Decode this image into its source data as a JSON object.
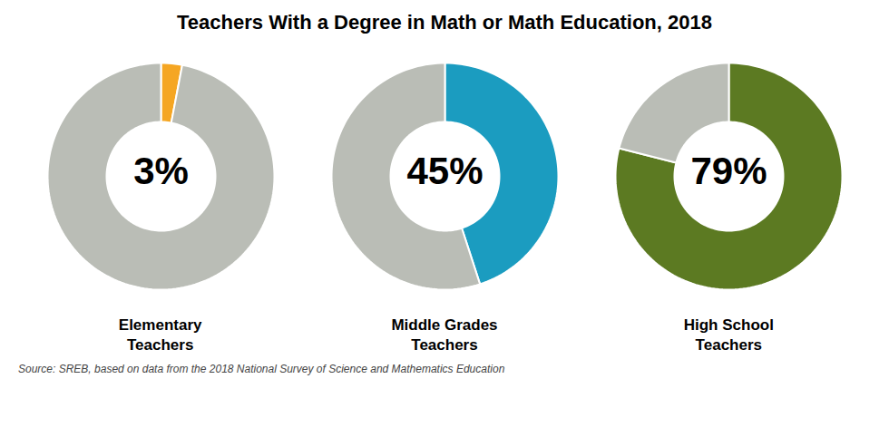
{
  "title": "Teachers With a Degree in Math or Math Education, 2018",
  "annotations": [
    "Source: SREB, based on data from the 2018 National Survey of Science and Mathematics Education"
  ],
  "chart_data": [
    {
      "type": "donut",
      "title": "Elementary\nTeachers",
      "values": [
        3,
        97
      ],
      "value_labels": [
        "3%",
        null
      ],
      "colors": [
        "#F5A623",
        "#BABDB6"
      ]
    },
    {
      "type": "donut",
      "title": "Middle Grades\nTeachers",
      "values": [
        45,
        55
      ],
      "value_labels": [
        "45%",
        null
      ],
      "colors": [
        "#1B9CC0",
        "#BABDB6"
      ]
    },
    {
      "type": "donut",
      "title": "High School\nTeachers",
      "values": [
        79,
        21
      ],
      "value_labels": [
        "79%",
        null
      ],
      "colors": [
        "#5C7A22",
        "#BABDB6"
      ]
    }
  ]
}
